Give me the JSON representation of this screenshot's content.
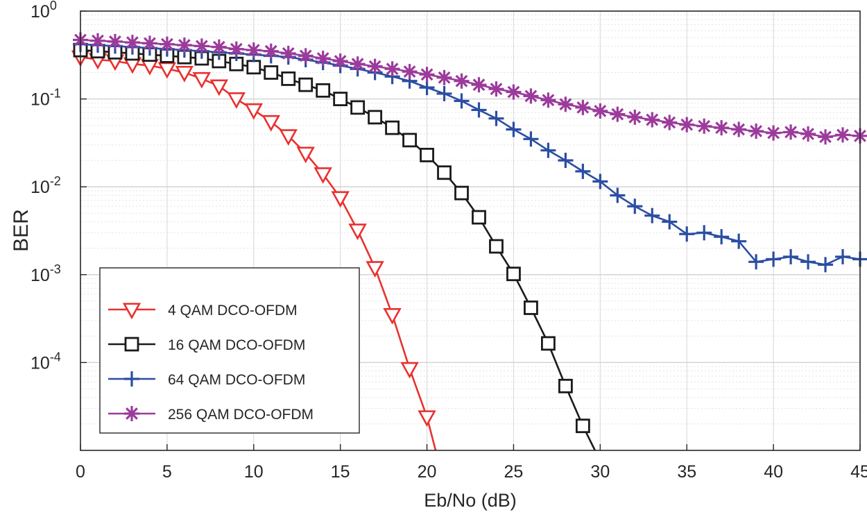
{
  "chart_data": {
    "type": "line",
    "title": "",
    "xlabel": "Eb/No (dB)",
    "ylabel": "BER",
    "xlim": [
      0,
      45
    ],
    "ylim": [
      1e-05,
      1
    ],
    "yscale": "log",
    "grid": true,
    "legend_location": "lower-left",
    "x_ticks": [
      "0",
      "5",
      "10",
      "15",
      "20",
      "25",
      "30",
      "35",
      "40",
      "45"
    ],
    "y_ticks": [
      {
        "base": "10",
        "exp": "0"
      },
      {
        "base": "10",
        "exp": "-1"
      },
      {
        "base": "10",
        "exp": "-2"
      },
      {
        "base": "10",
        "exp": "-3"
      },
      {
        "base": "10",
        "exp": "-4"
      }
    ],
    "series": [
      {
        "name": "4 QAM DCO-OFDM",
        "color": "#e8312f",
        "marker": "triangle-down",
        "x": [
          0,
          1,
          2,
          3,
          4,
          5,
          6,
          7,
          8,
          9,
          10,
          11,
          12,
          13,
          14,
          15,
          16,
          17,
          18,
          19,
          20,
          20.5
        ],
        "y": [
          0.3,
          0.28,
          0.27,
          0.25,
          0.24,
          0.22,
          0.2,
          0.17,
          0.14,
          0.1,
          0.075,
          0.055,
          0.038,
          0.024,
          0.014,
          0.0075,
          0.0032,
          0.0012,
          0.00035,
          8.5e-05,
          2.4e-05,
          1e-05
        ]
      },
      {
        "name": "16 QAM DCO-OFDM",
        "color": "#1a1a1a",
        "marker": "square",
        "x": [
          0,
          1,
          2,
          3,
          4,
          5,
          6,
          7,
          8,
          9,
          10,
          11,
          12,
          13,
          14,
          15,
          16,
          17,
          18,
          19,
          20,
          21,
          22,
          23,
          24,
          25,
          26,
          27,
          28,
          29,
          29.7
        ],
        "y": [
          0.36,
          0.35,
          0.34,
          0.33,
          0.32,
          0.31,
          0.3,
          0.29,
          0.27,
          0.25,
          0.23,
          0.2,
          0.17,
          0.145,
          0.125,
          0.1,
          0.08,
          0.062,
          0.047,
          0.034,
          0.023,
          0.0145,
          0.0085,
          0.0045,
          0.0021,
          0.00102,
          0.00042,
          0.000165,
          5.4e-05,
          1.9e-05,
          1e-05
        ]
      },
      {
        "name": "64 QAM DCO-OFDM",
        "color": "#2b4ea2",
        "marker": "plus",
        "x": [
          0,
          1,
          2,
          3,
          4,
          5,
          6,
          7,
          8,
          9,
          10,
          11,
          12,
          13,
          14,
          15,
          16,
          17,
          18,
          19,
          20,
          21,
          22,
          23,
          24,
          25,
          26,
          27,
          28,
          29,
          30,
          31,
          32,
          33,
          34,
          35,
          36,
          37,
          38,
          39,
          40,
          41,
          42,
          43,
          44,
          45
        ],
        "y": [
          0.42,
          0.41,
          0.4,
          0.39,
          0.38,
          0.37,
          0.36,
          0.35,
          0.34,
          0.33,
          0.32,
          0.31,
          0.3,
          0.28,
          0.26,
          0.24,
          0.22,
          0.2,
          0.18,
          0.16,
          0.135,
          0.115,
          0.095,
          0.075,
          0.06,
          0.045,
          0.035,
          0.026,
          0.02,
          0.015,
          0.0115,
          0.008,
          0.006,
          0.0047,
          0.004,
          0.0029,
          0.003,
          0.0027,
          0.0024,
          0.0014,
          0.0015,
          0.0016,
          0.0014,
          0.0013,
          0.0016,
          0.0015
        ]
      },
      {
        "name": "256 QAM DCO-OFDM",
        "color": "#9b3b9b",
        "marker": "asterisk",
        "x": [
          0,
          1,
          2,
          3,
          4,
          5,
          6,
          7,
          8,
          9,
          10,
          11,
          12,
          13,
          14,
          15,
          16,
          17,
          18,
          19,
          20,
          21,
          22,
          23,
          24,
          25,
          26,
          27,
          28,
          29,
          30,
          31,
          32,
          33,
          34,
          35,
          36,
          37,
          38,
          39,
          40,
          41,
          42,
          43,
          44,
          45
        ],
        "y": [
          0.47,
          0.46,
          0.45,
          0.44,
          0.43,
          0.42,
          0.41,
          0.4,
          0.39,
          0.37,
          0.36,
          0.35,
          0.33,
          0.31,
          0.29,
          0.27,
          0.25,
          0.235,
          0.22,
          0.205,
          0.19,
          0.175,
          0.16,
          0.145,
          0.13,
          0.12,
          0.108,
          0.097,
          0.087,
          0.08,
          0.073,
          0.067,
          0.062,
          0.058,
          0.054,
          0.051,
          0.049,
          0.047,
          0.045,
          0.043,
          0.041,
          0.042,
          0.04,
          0.037,
          0.039,
          0.038
        ]
      }
    ]
  }
}
